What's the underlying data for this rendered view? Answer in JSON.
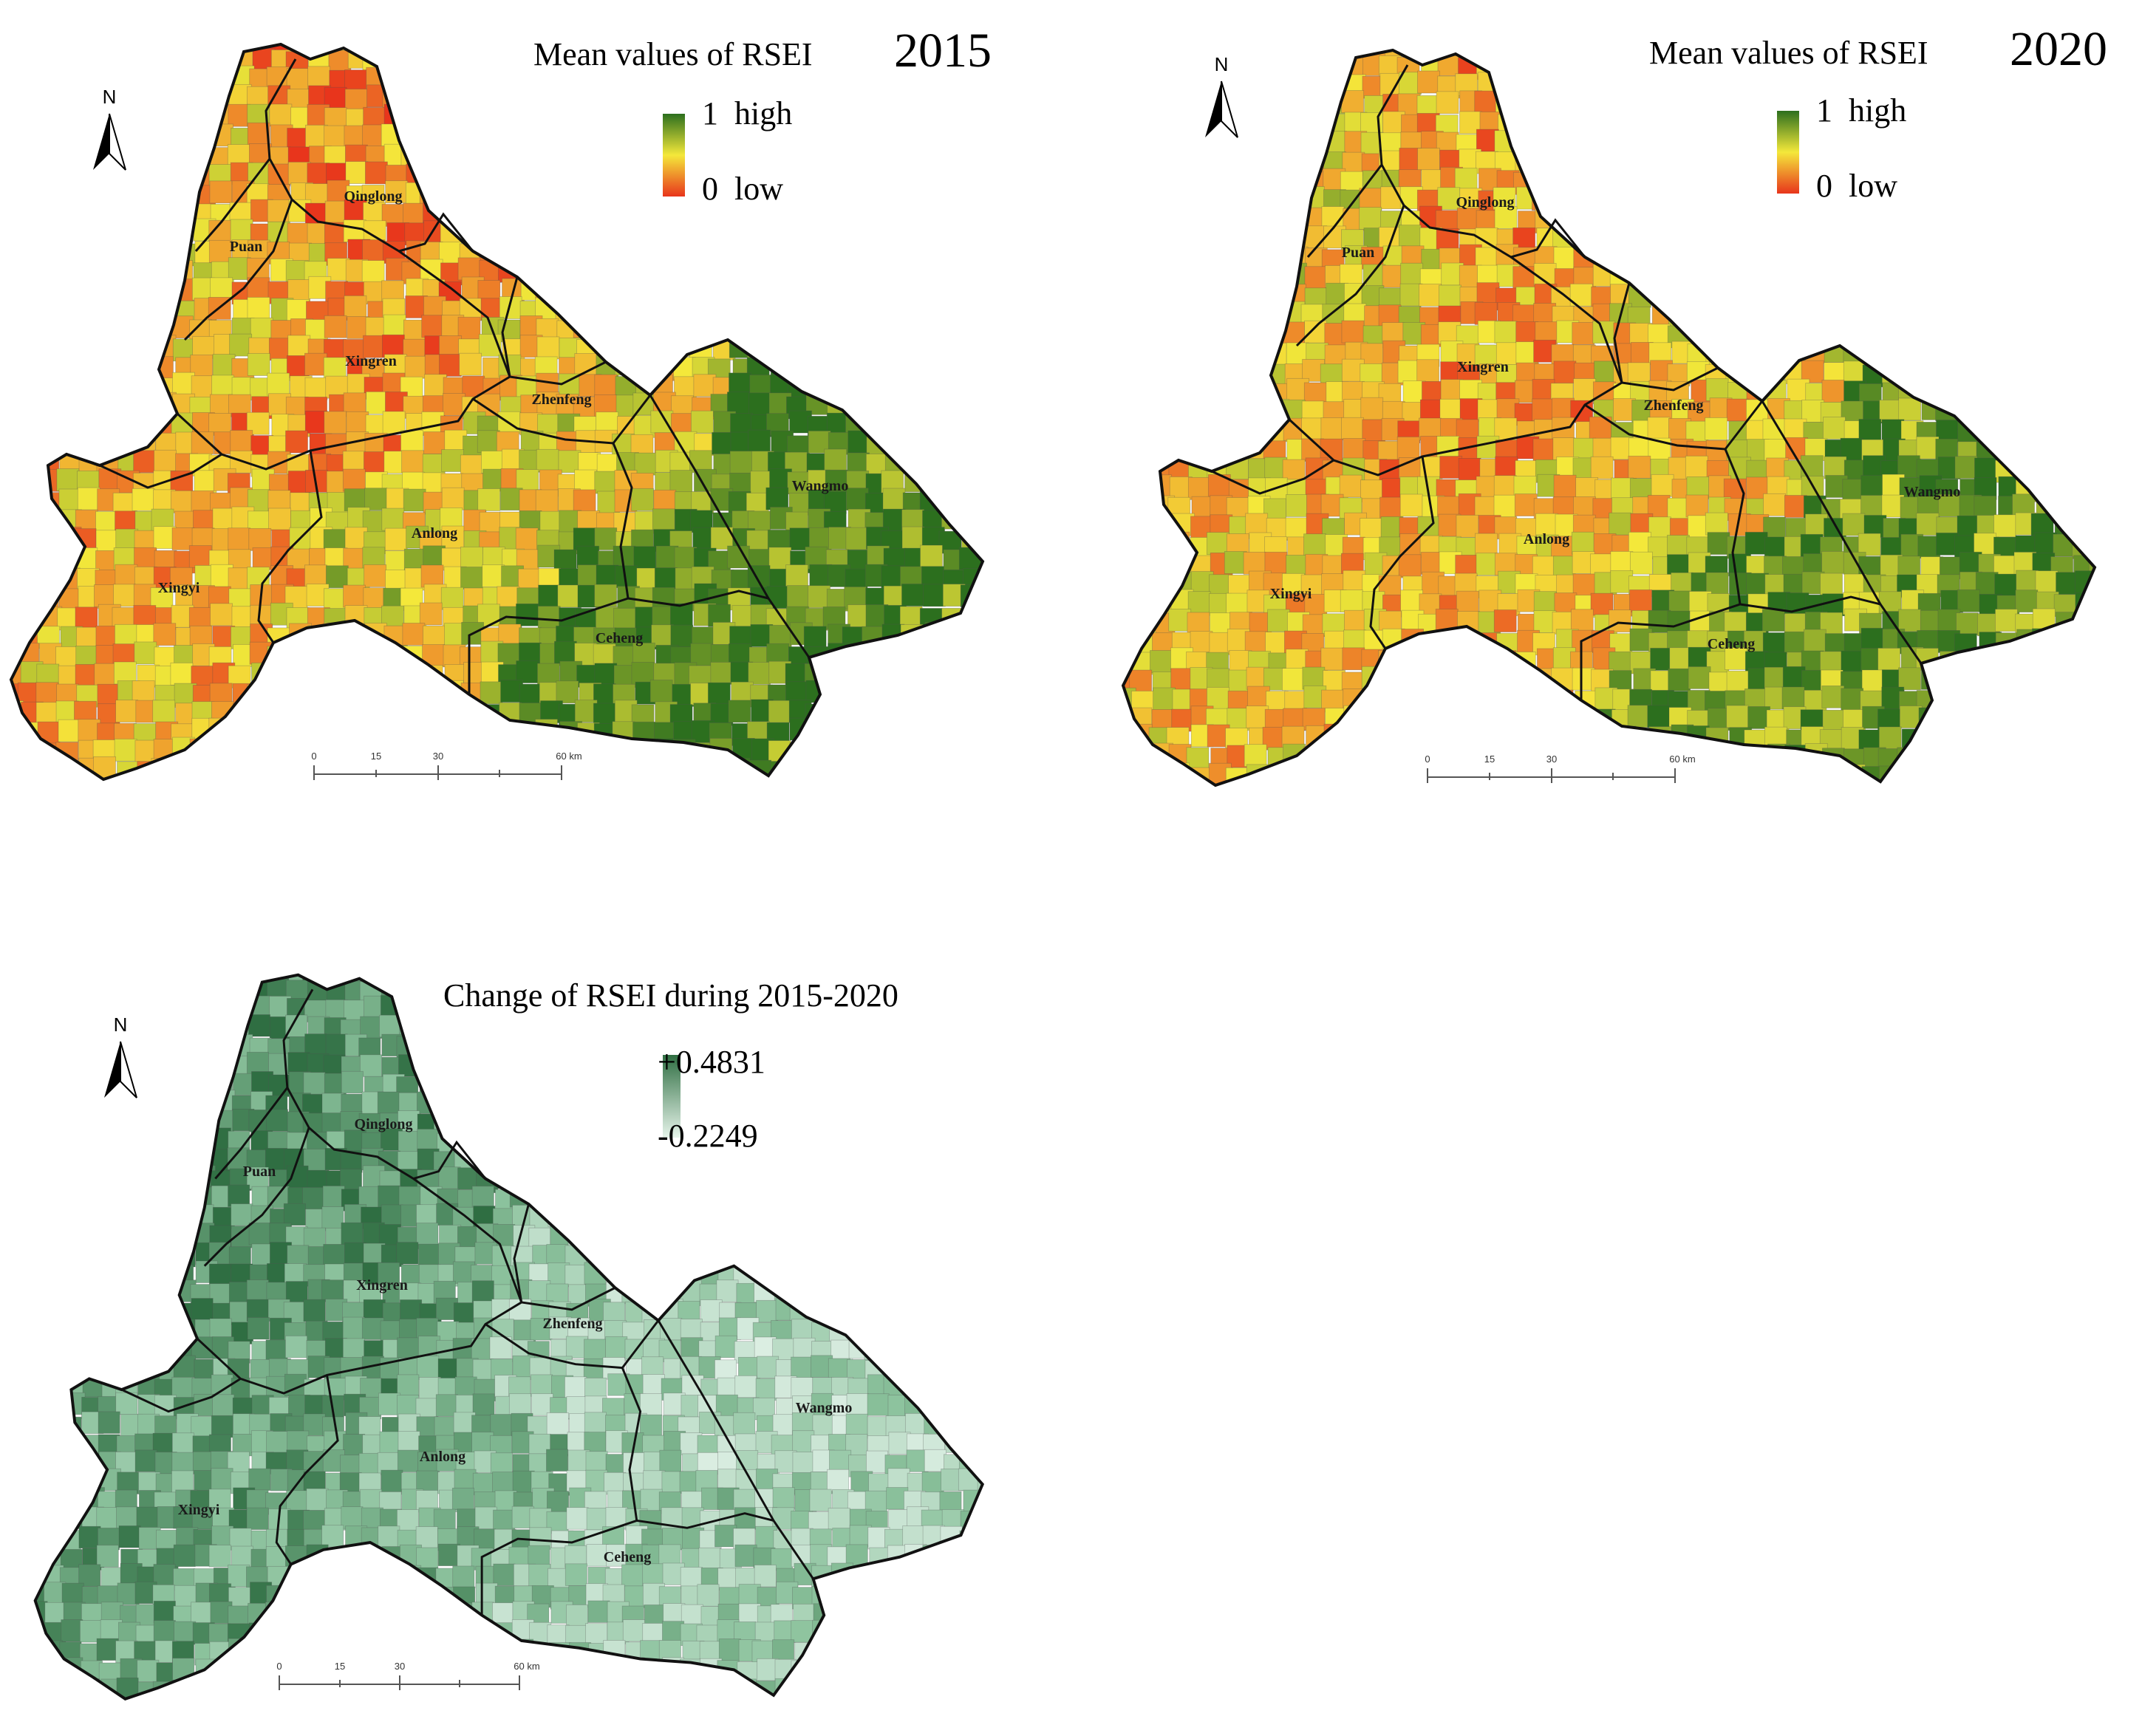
{
  "maps": [
    {
      "id": "rsei-2015",
      "title": "Mean values of RSEI",
      "year": "2015",
      "legend": {
        "high": "1  high",
        "low": "0  low"
      },
      "colors": {
        "low": "#e8351c",
        "mid": "#f4e83a",
        "high": "#2c6f1e"
      },
      "north": "N",
      "scale": {
        "ticks": [
          "0",
          "15",
          "30",
          "60 km"
        ]
      },
      "districts": [
        "Qinglong",
        "Puan",
        "Xingren",
        "Zhenfeng",
        "Wangmo",
        "Anlong",
        "Xingyi",
        "Ceheng"
      ]
    },
    {
      "id": "rsei-2020",
      "title": "Mean values of RSEI",
      "year": "2020",
      "legend": {
        "high": "1  high",
        "low": "0  low"
      },
      "colors": {
        "low": "#e8351c",
        "mid": "#f4e83a",
        "high": "#2c6f1e"
      },
      "north": "N",
      "scale": {
        "ticks": [
          "0",
          "15",
          "30",
          "60 km"
        ]
      },
      "districts": [
        "Qinglong",
        "Puan",
        "Xingren",
        "Zhenfeng",
        "Wangmo",
        "Anlong",
        "Xingyi",
        "Ceheng"
      ]
    },
    {
      "id": "rsei-change",
      "title": "Change of RSEI during 2015-2020",
      "year": "",
      "legend": {
        "high": "+0.4831",
        "low": "-0.2249"
      },
      "colors": {
        "low": "#dff0e6",
        "mid": "#8cc29d",
        "high": "#2f6e42"
      },
      "north": "N",
      "scale": {
        "ticks": [
          "0",
          "15",
          "30",
          "60 km"
        ]
      },
      "districts": [
        "Qinglong",
        "Puan",
        "Xingren",
        "Zhenfeng",
        "Wangmo",
        "Anlong",
        "Xingyi",
        "Ceheng"
      ]
    }
  ]
}
